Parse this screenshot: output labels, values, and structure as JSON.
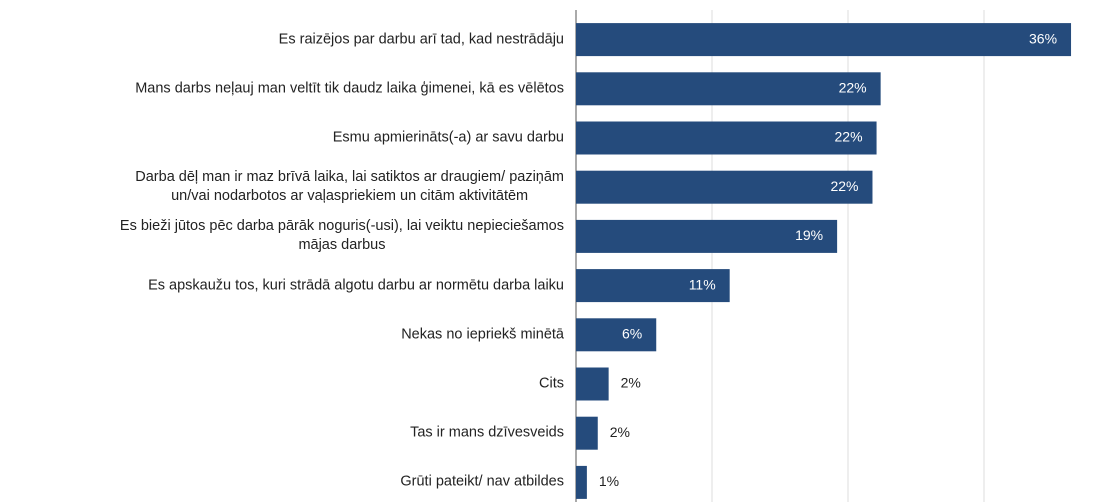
{
  "chart_data": {
    "type": "barh",
    "categories": [
      "Es raizējos par darbu arī tad, kad nestrādāju",
      "Mans darbs neļauj man veltīt tik daudz laika ģimenei, kā es vēlētos",
      "Esmu apmierināts(-a) ar savu darbu",
      "Darba dēļ man ir maz brīvā laika, lai satiktos ar draugiem/ paziņām\nun/vai nodarbotos ar vaļaspriekiem un citām aktivitātēm",
      "Es bieži jūtos pēc darba pārāk noguris(-usi), lai veiktu nepieciešamos\nmājas darbus",
      "Es apskaužu tos, kuri strādā algotu darbu ar normētu darba laiku",
      "Nekas no iepriekš minētā",
      "Cits",
      "Tas ir mans dzīvesveids",
      "Grūti pateikt/ nav atbildes"
    ],
    "values": [
      36.4,
      22.4,
      22.1,
      21.8,
      19.2,
      11.3,
      5.9,
      2.4,
      1.6,
      0.8
    ],
    "value_labels": [
      "36%",
      "22%",
      "22%",
      "22%",
      "19%",
      "11%",
      "6%",
      "2%",
      "2%",
      "1%"
    ],
    "color": "#254b7c",
    "xlim": [
      0,
      38
    ],
    "xticks": [
      0,
      10,
      20,
      30
    ],
    "grid": true
  }
}
